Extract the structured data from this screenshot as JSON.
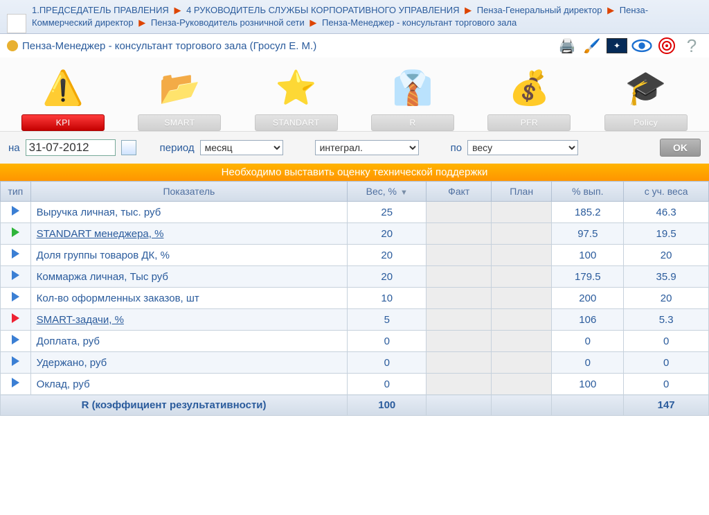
{
  "breadcrumb": {
    "items": [
      "1.ПРЕДСЕДАТЕЛЬ ПРАВЛЕНИЯ",
      "4 РУКОВОДИТЕЛЬ СЛУЖБЫ КОРПОРАТИВНОГО УПРАВЛЕНИЯ",
      "Пенза-Генеральный директор",
      "Пенза-Коммерческий директор",
      "Пенза-Руководитель розничной сети",
      "Пенза-Менеджер - консультант торгового зала"
    ]
  },
  "title": "Пенза-Менеджер - консультант торгового зала  (Гросул Е. М.)",
  "tabs": {
    "items": [
      {
        "label": "KPI",
        "active": true,
        "icon": "⚠"
      },
      {
        "label": "SMART",
        "active": false,
        "icon": "📁"
      },
      {
        "label": "STANDART",
        "active": false,
        "icon": "⭐"
      },
      {
        "label": "R",
        "active": false,
        "icon": "👤"
      },
      {
        "label": "PFR",
        "active": false,
        "icon": "💲"
      },
      {
        "label": "Policy",
        "active": false,
        "icon": "📜"
      }
    ]
  },
  "filters": {
    "date_label": "на",
    "date_value": "31-07-2012",
    "period_label": "период",
    "period_options": [
      "месяц"
    ],
    "integral_options": [
      "интеграл."
    ],
    "by_label": "по",
    "by_options": [
      "весу"
    ],
    "ok_label": "OK"
  },
  "banner": "Необходимо выставить оценку технической поддержки",
  "table": {
    "headers": {
      "type": "тип",
      "name": "Показатель",
      "weight": "Вес, %",
      "fact": "Факт",
      "plan": "План",
      "pct": "% вып.",
      "adj": "с уч. веса"
    },
    "col_widths": {
      "type": 42,
      "name": 420,
      "weight": 110,
      "fact": 90,
      "plan": 84,
      "pct": 100,
      "adj": 110
    },
    "rows": [
      {
        "tri": "blue",
        "name": "Выручка личная, тыс. руб",
        "link": false,
        "weight": "25",
        "fact": "",
        "plan": "",
        "pct": "185.2",
        "adj": "46.3"
      },
      {
        "tri": "green",
        "name": "STANDART менеджера, %",
        "link": true,
        "weight": "20",
        "fact": "",
        "plan": "",
        "pct": "97.5",
        "adj": "19.5"
      },
      {
        "tri": "blue",
        "name": "Доля группы товаров ДК, %",
        "link": false,
        "weight": "20",
        "fact": "",
        "plan": "",
        "pct": "100",
        "adj": "20"
      },
      {
        "tri": "blue",
        "name": "Коммаржа личная, Тыс руб",
        "link": false,
        "weight": "20",
        "fact": "",
        "plan": "",
        "pct": "179.5",
        "adj": "35.9"
      },
      {
        "tri": "blue",
        "name": "Кол-во оформленных заказов, шт",
        "link": false,
        "weight": "10",
        "fact": "",
        "plan": "",
        "pct": "200",
        "adj": "20"
      },
      {
        "tri": "red",
        "name": "SMART-задачи, %",
        "link": true,
        "weight": "5",
        "fact": "",
        "plan": "",
        "pct": "106",
        "adj": "5.3"
      },
      {
        "tri": "blue",
        "name": "Доплата, руб",
        "link": false,
        "weight": "0",
        "fact": "",
        "plan": "",
        "pct": "0",
        "adj": "0"
      },
      {
        "tri": "blue",
        "name": "Удержано, руб",
        "link": false,
        "weight": "0",
        "fact": "",
        "plan": "",
        "pct": "0",
        "adj": "0"
      },
      {
        "tri": "blue",
        "name": "Оклад, руб",
        "link": false,
        "weight": "0",
        "fact": "",
        "plan": "",
        "pct": "100",
        "adj": "0"
      }
    ],
    "footer": {
      "label": "R (коэффициент результативности)",
      "weight": "100",
      "adj": "147"
    }
  },
  "colors": {
    "accent": "#2a5b9c",
    "banner_bg": "#ff9f00",
    "tri_blue": "#3b7fd4",
    "tri_green": "#2fb53b",
    "tri_red": "#e23"
  }
}
